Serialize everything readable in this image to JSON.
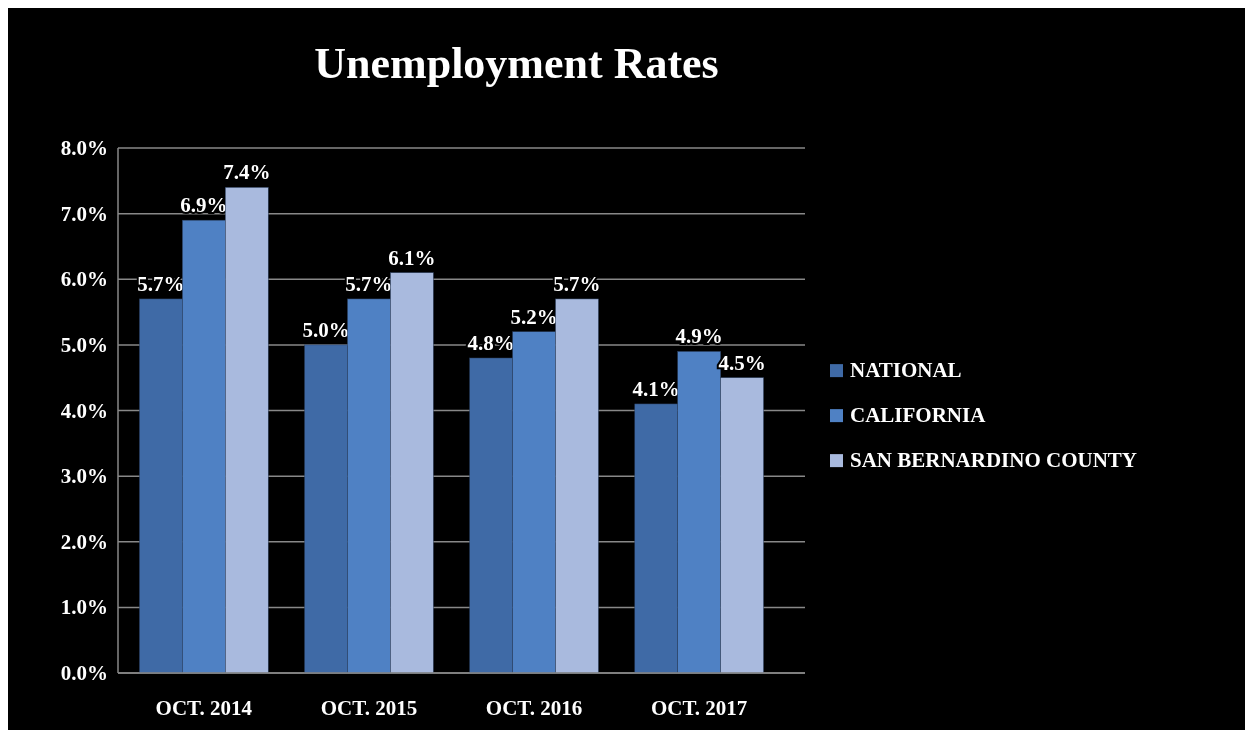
{
  "chart_data": {
    "type": "bar",
    "title": "Unemployment Rates",
    "categories": [
      "OCT. 2014",
      "OCT. 2015",
      "OCT. 2016",
      "OCT. 2017"
    ],
    "series": [
      {
        "name": "NATIONAL",
        "color": "#3f6aa6",
        "values": [
          5.7,
          5.0,
          4.8,
          4.1
        ],
        "value_labels": [
          "5.7%",
          "5.0%",
          "4.8%",
          "4.1%"
        ]
      },
      {
        "name": "CALIFORNIA",
        "color": "#4f81c4",
        "values": [
          6.9,
          5.7,
          5.2,
          4.9
        ],
        "value_labels": [
          "6.9%",
          "5.7%",
          "5.2%",
          "4.9%"
        ]
      },
      {
        "name": "SAN BERNARDINO COUNTY",
        "color": "#a9bade",
        "values": [
          7.4,
          6.1,
          5.7,
          4.5
        ],
        "value_labels": [
          "7.4%",
          "6.1%",
          "5.7%",
          "4.5%"
        ]
      }
    ],
    "ylim": [
      0,
      8
    ],
    "yticks": [
      {
        "value": 0,
        "label": "0.0%"
      },
      {
        "value": 1,
        "label": "1.0%"
      },
      {
        "value": 2,
        "label": "2.0%"
      },
      {
        "value": 3,
        "label": "3.0%"
      },
      {
        "value": 4,
        "label": "4.0%"
      },
      {
        "value": 5,
        "label": "5.0%"
      },
      {
        "value": 6,
        "label": "6.0%"
      },
      {
        "value": 7,
        "label": "7.0%"
      },
      {
        "value": 8,
        "label": "8.0%"
      }
    ],
    "grid": "y",
    "legend": "right"
  }
}
